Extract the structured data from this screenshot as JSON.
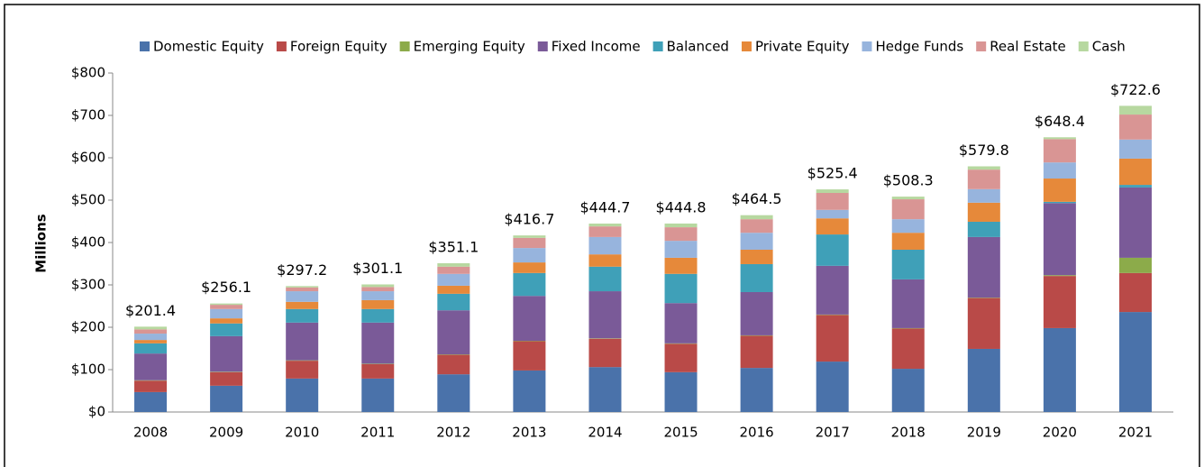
{
  "chart_data": {
    "type": "stacked_bar",
    "y_label": "Millions",
    "categories": [
      "2008",
      "2009",
      "2010",
      "2011",
      "2012",
      "2013",
      "2014",
      "2015",
      "2016",
      "2017",
      "2018",
      "2019",
      "2020",
      "2021"
    ],
    "series": [
      {
        "name": "Domestic Equity",
        "color": "#4a72aa",
        "values": [
          47,
          62,
          79,
          79,
          89,
          98,
          106,
          94,
          104,
          119,
          102,
          149,
          198,
          236
        ]
      },
      {
        "name": "Foreign Equity",
        "color": "#b94a48",
        "values": [
          27,
          32,
          42,
          34,
          46,
          69,
          67,
          67,
          76,
          110,
          95,
          120,
          123,
          92
        ]
      },
      {
        "name": "Emerging Equity",
        "color": "#8cab4a",
        "values": [
          1,
          1,
          1,
          1,
          1,
          1,
          1,
          1,
          1,
          1,
          1,
          1,
          2,
          36
        ]
      },
      {
        "name": "Fixed Income",
        "color": "#7a5a98",
        "values": [
          63,
          84,
          89,
          97,
          104,
          106,
          111,
          95,
          102,
          115,
          115,
          143,
          170,
          166
        ]
      },
      {
        "name": "Balanced",
        "color": "#3fa0b8",
        "values": [
          24,
          30,
          32,
          32,
          39,
          54,
          58,
          69,
          66,
          74,
          70,
          36,
          3,
          6
        ]
      },
      {
        "name": "Private Equity",
        "color": "#e6893a",
        "values": [
          8,
          12,
          17,
          21,
          19,
          25,
          29,
          38,
          34,
          38,
          40,
          45,
          55,
          62
        ]
      },
      {
        "name": "Hedge Funds",
        "color": "#97b4dd",
        "values": [
          15,
          22,
          25,
          21,
          28,
          34,
          41,
          40,
          40,
          20,
          32,
          32,
          38,
          45
        ]
      },
      {
        "name": "Real Estate",
        "color": "#d99594",
        "values": [
          10,
          10,
          9,
          10,
          17,
          24,
          25,
          32,
          32,
          40,
          47,
          46,
          55,
          59
        ]
      },
      {
        "name": "Cash",
        "color": "#b7d8a0",
        "values": [
          6.4,
          3.1,
          3.2,
          6.1,
          8.1,
          5.7,
          6.7,
          8.8,
          9.5,
          8.4,
          6.3,
          7.8,
          4.4,
          20.6
        ]
      }
    ],
    "totals": [
      201.4,
      256.1,
      297.2,
      301.1,
      351.1,
      416.7,
      444.7,
      444.8,
      464.5,
      525.4,
      508.3,
      579.8,
      648.4,
      722.6
    ],
    "total_labels": [
      "$201.4",
      "$256.1",
      "$297.2",
      "$301.1",
      "$351.1",
      "$416.7",
      "$444.7",
      "$444.8",
      "$464.5",
      "$525.4",
      "$508.3",
      "$579.8",
      "$648.4",
      "$722.6"
    ],
    "ylim": [
      0,
      800
    ],
    "yticks": [
      {
        "value": 0,
        "label": "$0"
      },
      {
        "value": 100,
        "label": "$100"
      },
      {
        "value": 200,
        "label": "$200"
      },
      {
        "value": 300,
        "label": "$300"
      },
      {
        "value": 400,
        "label": "$400"
      },
      {
        "value": 500,
        "label": "$500"
      },
      {
        "value": 600,
        "label": "$600"
      },
      {
        "value": 700,
        "label": "$700"
      },
      {
        "value": 800,
        "label": "$800"
      }
    ],
    "legend": "top"
  }
}
